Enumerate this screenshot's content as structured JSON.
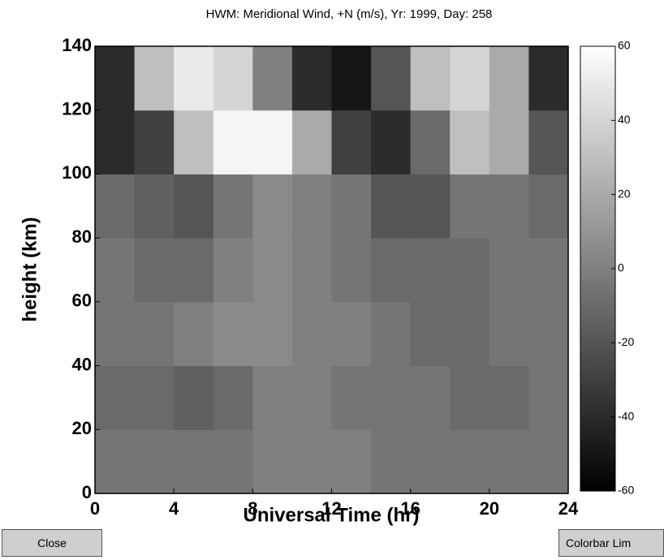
{
  "chart_data": {
    "type": "heatmap",
    "title": "HWM: Meridional Wind, +N (m/s),  Yr: 1999,  Day: 258",
    "x_label": "Universal Time (hr)",
    "y_label": "height (km)",
    "x_bins": [
      0,
      2,
      4,
      6,
      8,
      10,
      12,
      14,
      16,
      18,
      20,
      22,
      24
    ],
    "y_bins": [
      0,
      20,
      40,
      60,
      80,
      100,
      120,
      140
    ],
    "values": [
      [
        -5,
        -5,
        -5,
        -5,
        0,
        0,
        0,
        -5,
        -5,
        -5,
        -5,
        -5
      ],
      [
        -10,
        -10,
        -15,
        -10,
        0,
        0,
        -5,
        -5,
        -5,
        -10,
        -10,
        -5
      ],
      [
        -5,
        -5,
        0,
        5,
        5,
        0,
        0,
        -5,
        -10,
        -10,
        -5,
        -5
      ],
      [
        -5,
        -10,
        -10,
        0,
        5,
        0,
        -5,
        -10,
        -10,
        -10,
        -5,
        -5
      ],
      [
        -10,
        -15,
        -20,
        -5,
        5,
        0,
        -5,
        -20,
        -20,
        -5,
        -5,
        -10
      ],
      [
        -40,
        -30,
        30,
        55,
        55,
        20,
        -30,
        -40,
        -10,
        30,
        20,
        -20
      ],
      [
        -40,
        30,
        50,
        40,
        0,
        -40,
        -50,
        -20,
        30,
        40,
        20,
        -40
      ]
    ],
    "xlim": [
      0,
      24
    ],
    "ylim": [
      0,
      140
    ],
    "xticks": [
      0,
      4,
      8,
      12,
      16,
      20,
      24
    ],
    "yticks": [
      0,
      20,
      40,
      60,
      80,
      100,
      120,
      140
    ],
    "colorbar": {
      "clim": [
        -60,
        60
      ],
      "ticks": [
        -60,
        -40,
        -20,
        0,
        20,
        40,
        60
      ],
      "colormap": [
        "#000000",
        "#ffffff"
      ]
    }
  },
  "buttons": [
    "Close",
    "Colorbar Lim"
  ]
}
